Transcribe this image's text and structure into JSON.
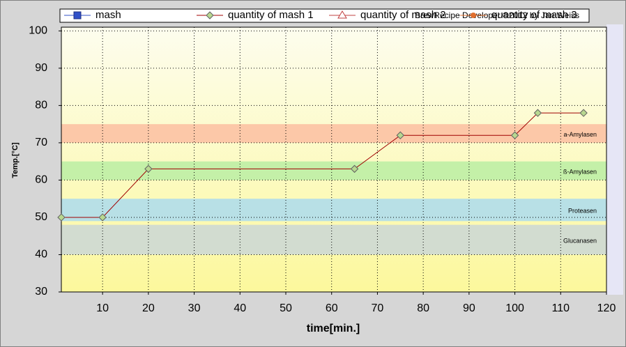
{
  "chart_data": {
    "type": "line",
    "x_label": "time[min.]",
    "y_label": "Temp.[°C]",
    "watermark": "BrewRecipe Developer ©2012 by Jan Weiss",
    "legend": [
      {
        "name": "mash",
        "color": "#3050c8",
        "marker": "square"
      },
      {
        "name": "quantity of mash 1",
        "color": "#a00000",
        "marker": "diamond"
      },
      {
        "name": "quantity of mash 2",
        "color": "#c04040",
        "marker": "triangle"
      },
      {
        "name": "quantity of mash 3",
        "color": "#e07030",
        "marker": "circle"
      }
    ],
    "x": [
      1,
      10,
      20,
      65,
      75,
      100,
      105,
      115
    ],
    "series": [
      {
        "name": "quantity of mash 1",
        "color": "#a00000",
        "marker_color": "#b8d890",
        "values": [
          50,
          50,
          63,
          63,
          72,
          72,
          78,
          78
        ]
      }
    ],
    "bands": [
      {
        "label": "a-Amylasen",
        "from": 70,
        "to": 75,
        "color": "#fcc8a8"
      },
      {
        "label": "ß-Amylasen",
        "from": 60,
        "to": 65,
        "color": "#c4f0a8"
      },
      {
        "label": "Proteasen",
        "from": 49,
        "to": 55,
        "color": "#b8e0e6"
      },
      {
        "label": "Glucanasen",
        "from": 40,
        "to": 48,
        "color": "#d2dcd0"
      }
    ],
    "xlim": [
      1,
      120
    ],
    "xticks": [
      10,
      20,
      30,
      40,
      50,
      60,
      70,
      80,
      90,
      100,
      110,
      120
    ],
    "ylim": [
      30,
      101
    ],
    "yticks": [
      30,
      40,
      50,
      60,
      70,
      80,
      90,
      100
    ],
    "grid": true
  }
}
